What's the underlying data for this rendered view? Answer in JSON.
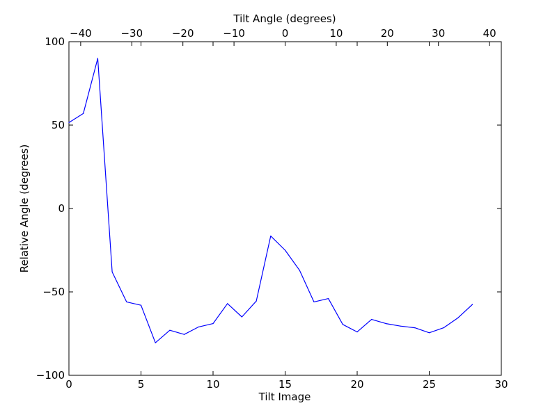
{
  "chart_data": {
    "type": "line",
    "xlabel": "Tilt Image",
    "ylabel": "Relative Angle (degrees)",
    "top_xlabel": "Tilt Angle (degrees)",
    "xlim": [
      0,
      30
    ],
    "ylim": [
      -100,
      100
    ],
    "top_xlim": [
      -42.3,
      42.3
    ],
    "x_ticks": [
      0,
      5,
      10,
      15,
      20,
      25,
      30
    ],
    "x_tick_labels": [
      "0",
      "5",
      "10",
      "15",
      "20",
      "25",
      "30"
    ],
    "y_ticks": [
      100,
      50,
      0,
      -50,
      -100
    ],
    "y_tick_labels": [
      "100",
      "50",
      "0",
      "−50",
      "−100"
    ],
    "top_x_ticks": [
      -40,
      -30,
      -20,
      -10,
      0,
      10,
      20,
      30,
      40
    ],
    "top_x_tick_labels": [
      "−40",
      "−30",
      "−20",
      "−10",
      "0",
      "10",
      "20",
      "30",
      "40"
    ],
    "grid": false,
    "series": [
      {
        "color": "#0000ff",
        "x": [
          0,
          1,
          2,
          3,
          4,
          5,
          6,
          7,
          8,
          9,
          10,
          11,
          12,
          13,
          14,
          15,
          16,
          17,
          18,
          19,
          20,
          21,
          22,
          23,
          24,
          25,
          26,
          27,
          28
        ],
        "y": [
          51.5,
          57,
          90,
          -38,
          -56,
          -58,
          -80.5,
          -73,
          -75.5,
          -71,
          -69,
          -57,
          -65,
          -55.5,
          -16.5,
          -25,
          -37,
          -56,
          -54,
          -69.5,
          -74,
          -66.5,
          -69,
          -70.5,
          -71.5,
          -74.5,
          -71.5,
          -65.5,
          -57.5
        ]
      }
    ]
  }
}
